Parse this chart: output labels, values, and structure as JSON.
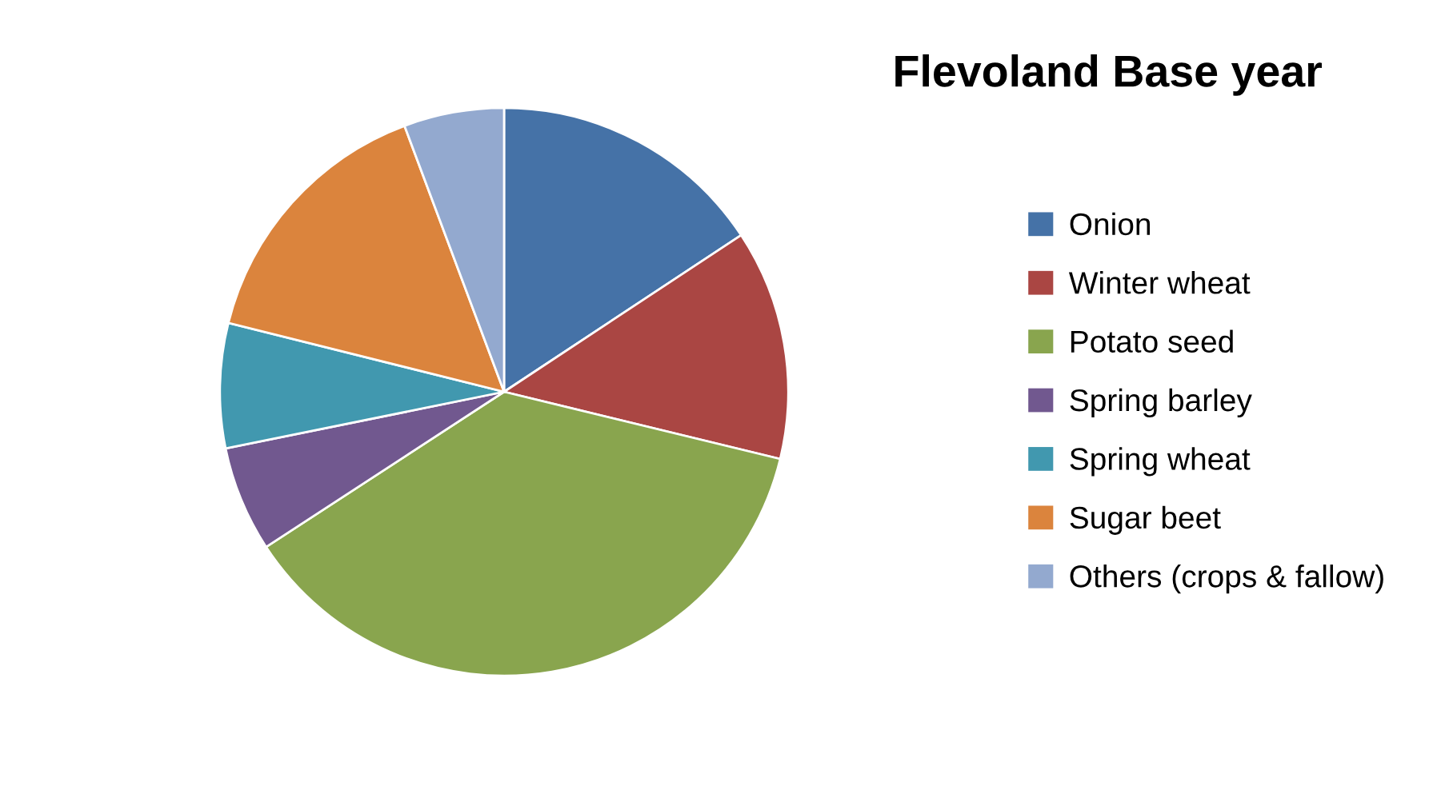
{
  "chart_data": {
    "type": "pie",
    "title": "Flevoland Base year",
    "categories": [
      "Onion",
      "Winter wheat",
      "Potato seed",
      "Spring barley",
      "Spring wheat",
      "Sugar beet",
      "Others (crops & fallow)"
    ],
    "values": [
      15.7,
      13.1,
      37.0,
      6.0,
      7.1,
      15.4,
      5.7
    ],
    "colors": [
      "#4572a7",
      "#aa4643",
      "#89a54e",
      "#71588f",
      "#4198af",
      "#db843d",
      "#93a9cf"
    ],
    "legend": "right"
  }
}
